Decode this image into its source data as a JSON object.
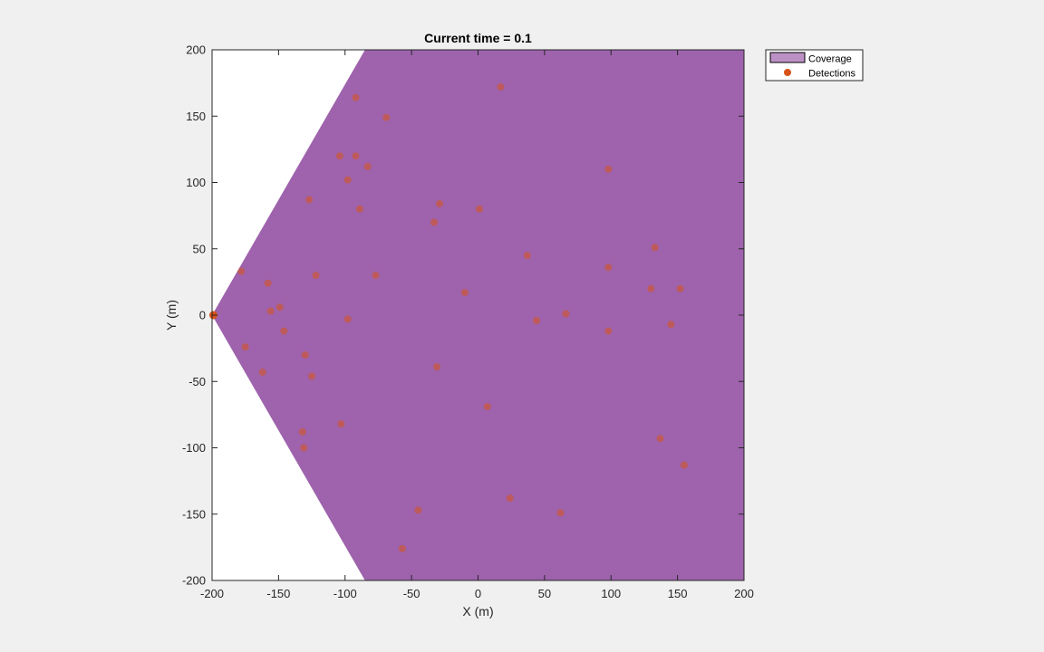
{
  "chart_data": {
    "type": "scatter",
    "title": "Current time = 0.1",
    "xlabel": "X (m)",
    "ylabel": "Y (m)",
    "xlim": [
      -200,
      200
    ],
    "ylim": [
      -200,
      200
    ],
    "grid": false,
    "x_ticks": [
      -200,
      -150,
      -100,
      -50,
      0,
      50,
      100,
      150,
      200
    ],
    "y_ticks": [
      -200,
      -150,
      -100,
      -50,
      0,
      50,
      100,
      150,
      200
    ],
    "x_tick_labels": [
      "-200",
      "-150",
      "-100",
      "-50",
      "0",
      "50",
      "100",
      "150",
      "200"
    ],
    "y_tick_labels": [
      "-200",
      "-150",
      "-100",
      "-50",
      "0",
      "50",
      "100",
      "150",
      "200"
    ],
    "legend": {
      "placement": "outside top-right",
      "entries": [
        "Coverage",
        "Detections"
      ]
    },
    "coverage": {
      "name": "Coverage",
      "color": "#9e63ac",
      "polygon": [
        [
          -200,
          0
        ],
        [
          -85,
          200
        ],
        [
          200,
          200
        ],
        [
          200,
          -200
        ],
        [
          -85,
          -200
        ]
      ]
    },
    "sensor_marker": {
      "x": -199,
      "y": 0,
      "color": "#d95319"
    },
    "detections": {
      "name": "Detections",
      "color": "#d95319",
      "points": [
        [
          -92,
          164
        ],
        [
          -69,
          149
        ],
        [
          17,
          172
        ],
        [
          -104,
          120
        ],
        [
          -92,
          120
        ],
        [
          -83,
          112
        ],
        [
          -98,
          102
        ],
        [
          -89,
          80
        ],
        [
          -127,
          87
        ],
        [
          -29,
          84
        ],
        [
          1,
          80
        ],
        [
          -33,
          70
        ],
        [
          98,
          110
        ],
        [
          133,
          51
        ],
        [
          37,
          45
        ],
        [
          98,
          36
        ],
        [
          -178,
          33
        ],
        [
          -122,
          30
        ],
        [
          -77,
          30
        ],
        [
          -158,
          24
        ],
        [
          130,
          20
        ],
        [
          152,
          20
        ],
        [
          -10,
          17
        ],
        [
          -149,
          6
        ],
        [
          -156,
          3
        ],
        [
          66,
          1
        ],
        [
          -98,
          -3
        ],
        [
          44,
          -4
        ],
        [
          145,
          -7
        ],
        [
          98,
          -12
        ],
        [
          -146,
          -12
        ],
        [
          -175,
          -24
        ],
        [
          -130,
          -30
        ],
        [
          -162,
          -43
        ],
        [
          -125,
          -46
        ],
        [
          -31,
          -39
        ],
        [
          7,
          -69
        ],
        [
          -103,
          -82
        ],
        [
          -132,
          -88
        ],
        [
          -131,
          -100
        ],
        [
          137,
          -93
        ],
        [
          155,
          -113
        ],
        [
          24,
          -138
        ],
        [
          62,
          -149
        ],
        [
          -45,
          -147
        ],
        [
          -57,
          -176
        ]
      ]
    }
  }
}
